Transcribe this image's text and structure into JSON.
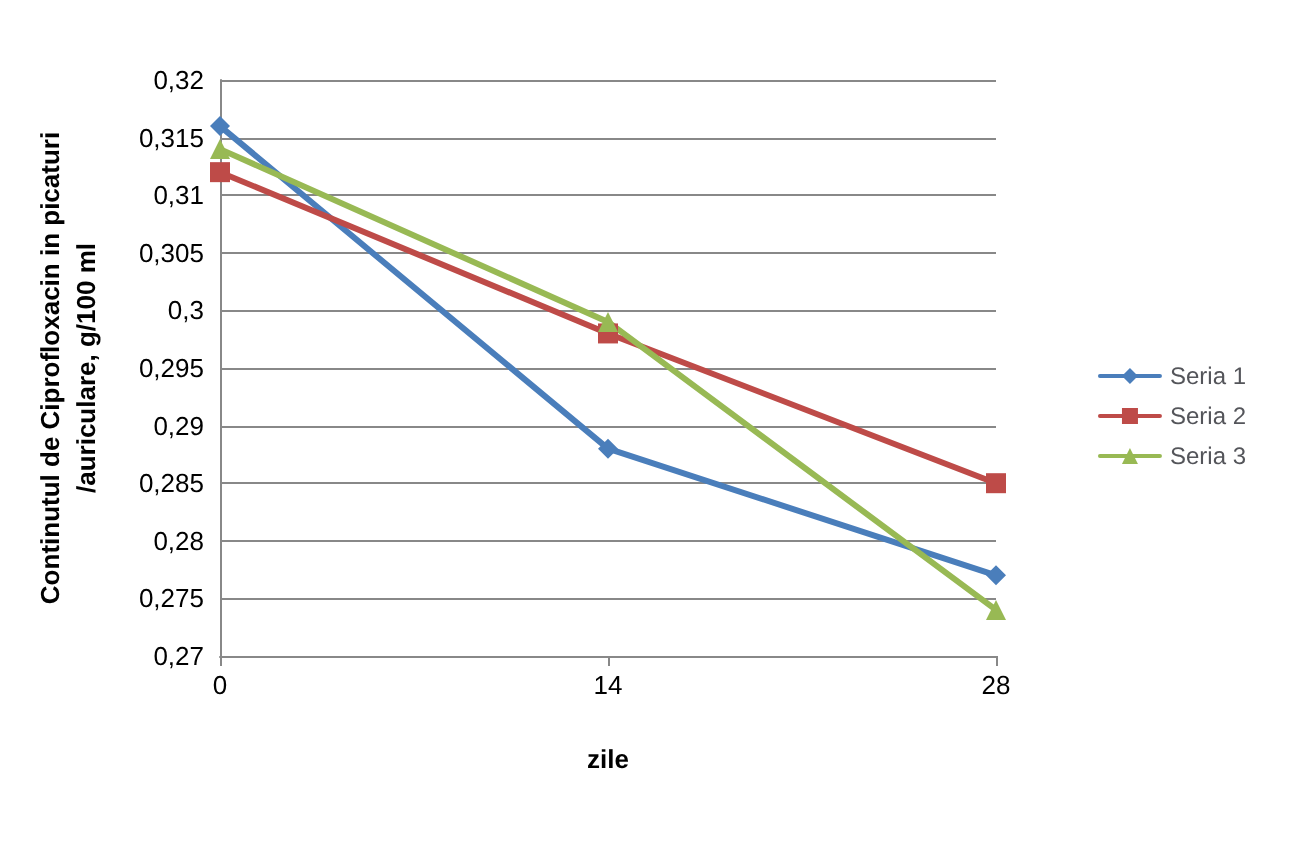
{
  "chart_data": {
    "type": "line",
    "xlabel": "zile",
    "ylabel": "Continutul de Ciprofloxacin in picaturi\n/auriculare, g/100 ml",
    "categories": [
      "0",
      "14",
      "28"
    ],
    "series": [
      {
        "name": "Seria 1",
        "color": "#4a7ebb",
        "marker": "diamond",
        "values": [
          0.316,
          0.288,
          0.277
        ]
      },
      {
        "name": "Seria 2",
        "color": "#be4b48",
        "marker": "square",
        "values": [
          0.312,
          0.298,
          0.285
        ]
      },
      {
        "name": "Seria 3",
        "color": "#98b954",
        "marker": "triangle",
        "values": [
          0.314,
          0.299,
          0.274
        ]
      }
    ],
    "ylim": [
      0.27,
      0.32
    ],
    "yticks": [
      {
        "value": 0.27,
        "label": "0,27"
      },
      {
        "value": 0.275,
        "label": "0,275"
      },
      {
        "value": 0.28,
        "label": "0,28"
      },
      {
        "value": 0.285,
        "label": "0,285"
      },
      {
        "value": 0.29,
        "label": "0,29"
      },
      {
        "value": 0.295,
        "label": "0,295"
      },
      {
        "value": 0.3,
        "label": "0,3"
      },
      {
        "value": 0.305,
        "label": "0,305"
      },
      {
        "value": 0.31,
        "label": "0,31"
      },
      {
        "value": 0.315,
        "label": "0,315"
      },
      {
        "value": 0.32,
        "label": "0,32"
      }
    ],
    "grid": "y",
    "legend": "right",
    "line_style": "solid"
  }
}
